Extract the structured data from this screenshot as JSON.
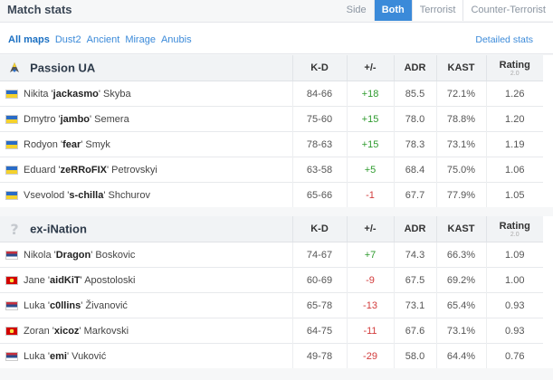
{
  "header": {
    "title": "Match stats",
    "side_label": "Side",
    "options": [
      "Both",
      "Terrorist",
      "Counter-Terrorist"
    ]
  },
  "maps": {
    "items": [
      "All maps",
      "Dust2",
      "Ancient",
      "Mirage",
      "Anubis"
    ],
    "detailed": "Detailed stats"
  },
  "columns": {
    "kd": "K-D",
    "pm": "+/-",
    "adr": "ADR",
    "kast": "KAST",
    "rating": "Rating",
    "rating_sub": "2.0"
  },
  "team1": {
    "name": "Passion UA",
    "logo_icon": "passion-ua-logo",
    "players": [
      {
        "flag": "ua",
        "first": "Nikita '",
        "nick": "jackasmo",
        "last": "' Skyba",
        "kd": "84-66",
        "pm": "+18",
        "adr": "85.5",
        "kast": "72.1%",
        "rating": "1.26"
      },
      {
        "flag": "ua",
        "first": "Dmytro '",
        "nick": "jambo",
        "last": "' Semera",
        "kd": "75-60",
        "pm": "+15",
        "adr": "78.0",
        "kast": "78.8%",
        "rating": "1.20"
      },
      {
        "flag": "ua",
        "first": "Rodyon '",
        "nick": "fear",
        "last": "' Smyk",
        "kd": "78-63",
        "pm": "+15",
        "adr": "78.3",
        "kast": "73.1%",
        "rating": "1.19"
      },
      {
        "flag": "ua",
        "first": "Eduard '",
        "nick": "zeRRoFIX",
        "last": "' Petrovskyi",
        "kd": "63-58",
        "pm": "+5",
        "adr": "68.4",
        "kast": "75.0%",
        "rating": "1.06"
      },
      {
        "flag": "ua",
        "first": "Vsevolod '",
        "nick": "s-chilla",
        "last": "' Shchurov",
        "kd": "65-66",
        "pm": "-1",
        "adr": "67.7",
        "kast": "77.9%",
        "rating": "1.05"
      }
    ]
  },
  "team2": {
    "name": "ex-iNation",
    "logo_icon": "question-mark-logo",
    "players": [
      {
        "flag": "rs",
        "first": "Nikola '",
        "nick": "Dragon",
        "last": "' Boskovic",
        "kd": "74-67",
        "pm": "+7",
        "adr": "74.3",
        "kast": "66.3%",
        "rating": "1.09"
      },
      {
        "flag": "mk",
        "first": "Jane '",
        "nick": "aidKiT",
        "last": "' Apostoloski",
        "kd": "60-69",
        "pm": "-9",
        "adr": "67.5",
        "kast": "69.2%",
        "rating": "1.00"
      },
      {
        "flag": "rs",
        "first": "Luka '",
        "nick": "c0llins",
        "last": "' Živanović",
        "kd": "65-78",
        "pm": "-13",
        "adr": "73.1",
        "kast": "65.4%",
        "rating": "0.93"
      },
      {
        "flag": "mk",
        "first": "Zoran '",
        "nick": "xicoz",
        "last": "' Markovski",
        "kd": "64-75",
        "pm": "-11",
        "adr": "67.6",
        "kast": "73.1%",
        "rating": "0.93"
      },
      {
        "flag": "rs",
        "first": "Luka '",
        "nick": "emi",
        "last": "' Vuković",
        "kd": "49-78",
        "pm": "-29",
        "adr": "58.0",
        "kast": "64.4%",
        "rating": "0.76"
      }
    ]
  },
  "colors": {
    "accent": "#3b8ad9",
    "positive": "#2e9b2e",
    "negative": "#d23b3b"
  }
}
